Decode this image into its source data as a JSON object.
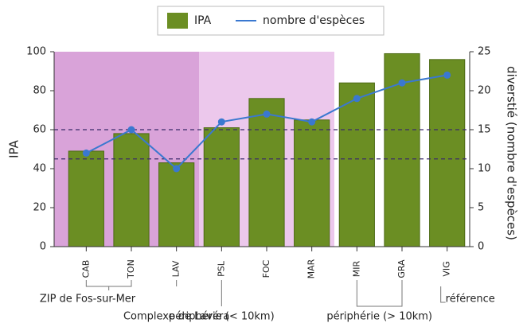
{
  "chart_data": {
    "type": "bar_line",
    "categories": [
      "CAB",
      "TON",
      "LAV",
      "PSL",
      "FOC",
      "MAR",
      "MIR",
      "GRA",
      "VIG"
    ],
    "series": [
      {
        "name": "IPA",
        "type": "bar",
        "color": "#6b8e23",
        "values": [
          49,
          58,
          43,
          61,
          76,
          65,
          84,
          99,
          96
        ]
      },
      {
        "name": "nombre d'espèces",
        "type": "line",
        "axis": "y2",
        "color": "#3a78d0",
        "values": [
          12,
          15,
          10,
          16,
          17,
          16,
          19,
          21,
          22
        ]
      }
    ],
    "ylabel": "IPA",
    "y2label": "diverstié (nombre d'espèces)",
    "ylim": [
      0,
      100
    ],
    "yticks": [
      0,
      20,
      40,
      60,
      80,
      100
    ],
    "y2lim": [
      0,
      25
    ],
    "y2ticks": [
      0,
      5,
      10,
      15,
      20,
      25
    ],
    "reference_lines": [
      60,
      45
    ],
    "regions": [
      {
        "from": 0,
        "to": 2,
        "color": "#d9a3d9"
      },
      {
        "from": 3,
        "to": 5,
        "color": "#ecc8ec"
      }
    ],
    "groups": [
      {
        "label": "ZIP de Fos-sur-Mer",
        "from": 0,
        "to": 1
      },
      {
        "label": "Complexe de Lavéra",
        "from": 2,
        "to": 2
      },
      {
        "label": "périphérie (< 10km)",
        "from": 3,
        "to": 5
      },
      {
        "label": "périphérie (> 10km)",
        "from": 6,
        "to": 7
      },
      {
        "label": "référence",
        "from": 8,
        "to": 8
      }
    ],
    "legend": "top"
  }
}
